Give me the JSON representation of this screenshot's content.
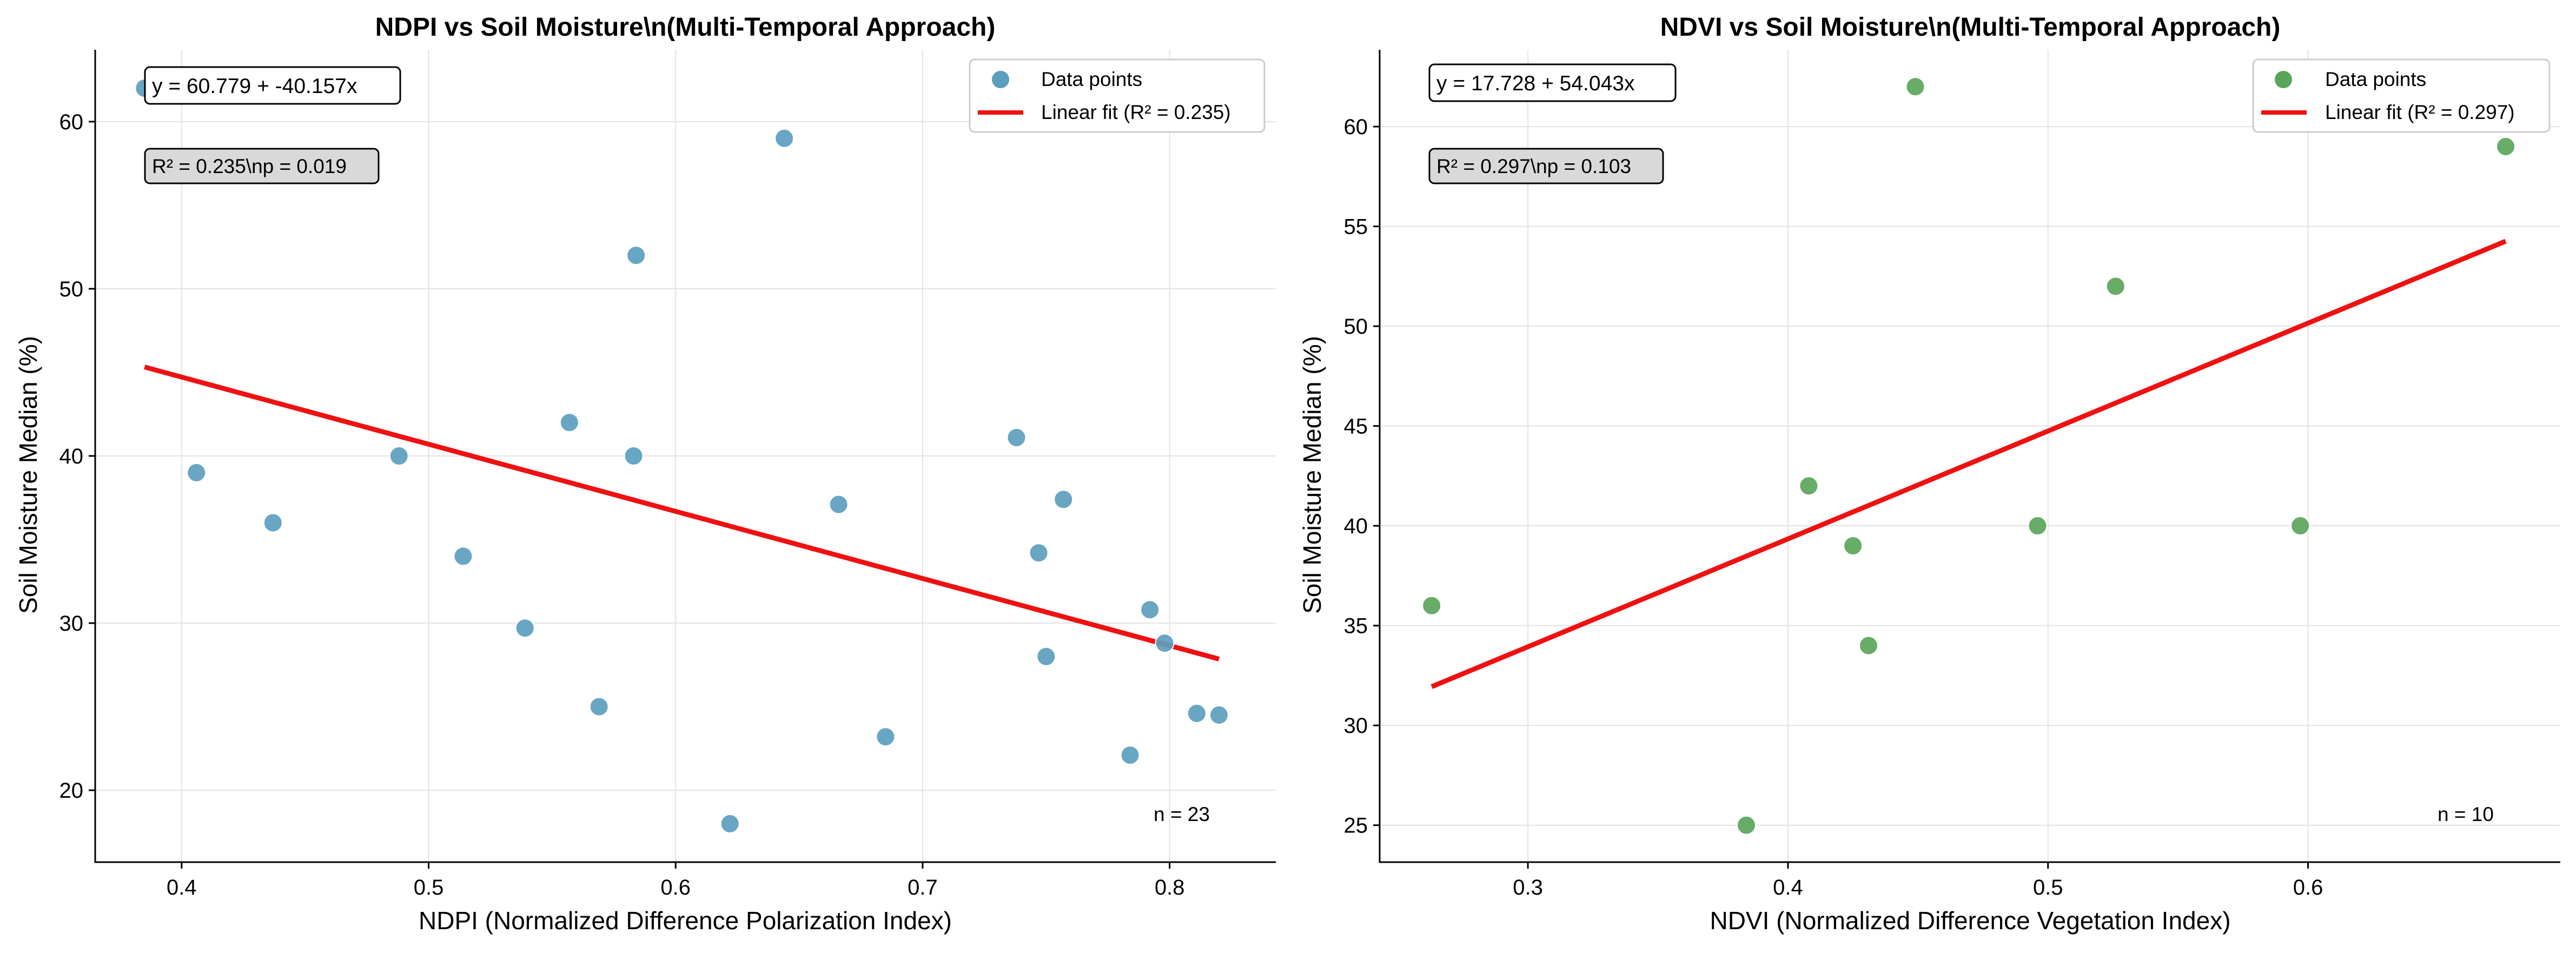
{
  "chart_data": [
    {
      "type": "scatter",
      "title": "NDPI vs Soil Moisture\\n(Multi-Temporal Approach)",
      "xlabel": "NDPI (Normalized Difference Polarization Index)",
      "ylabel": "Soil Moisture Median (%)",
      "xlim": [
        0.365,
        0.843
      ],
      "ylim": [
        15.7,
        64.3
      ],
      "xticks": [
        0.4,
        0.5,
        0.6,
        0.7,
        0.8
      ],
      "xtick_labels": [
        "0.4",
        "0.5",
        "0.6",
        "0.7",
        "0.8"
      ],
      "yticks": [
        20,
        30,
        40,
        50,
        60
      ],
      "ytick_labels": [
        "20",
        "30",
        "40",
        "50",
        "60"
      ],
      "grid": true,
      "legend_position": "top-right",
      "series": [
        {
          "name": "Data points",
          "kind": "scatter",
          "color": "#5b9ebf",
          "x": [
            0.385,
            0.406,
            0.437,
            0.488,
            0.514,
            0.539,
            0.557,
            0.569,
            0.583,
            0.584,
            0.622,
            0.644,
            0.666,
            0.685,
            0.738,
            0.747,
            0.75,
            0.757,
            0.784,
            0.792,
            0.798,
            0.811,
            0.82
          ],
          "y": [
            62,
            39,
            36,
            40,
            34,
            29.7,
            42,
            25,
            40,
            52,
            18,
            59,
            37.1,
            23.2,
            41.1,
            34.2,
            28,
            37.4,
            22.1,
            30.8,
            28.8,
            24.6,
            24.5
          ]
        },
        {
          "name": "Linear fit (R² = 0.235)",
          "kind": "line",
          "color": "#ee1111",
          "x": [
            0.385,
            0.82
          ],
          "y": [
            45.32,
            27.85
          ]
        }
      ],
      "annotations": {
        "equation": "y = 60.779 + -40.157x",
        "stats": "R² = 0.235\\np = 0.019",
        "count": "n = 23"
      }
    },
    {
      "type": "scatter",
      "title": "NDVI vs Soil Moisture\\n(Multi-Temporal Approach)",
      "xlabel": "NDVI (Normalized Difference Vegetation Index)",
      "ylabel": "Soil Moisture Median (%)",
      "xlim": [
        0.243,
        0.697
      ],
      "ylim": [
        23.15,
        63.85
      ],
      "xticks": [
        0.3,
        0.4,
        0.5,
        0.6
      ],
      "xtick_labels": [
        "0.3",
        "0.4",
        "0.5",
        "0.6"
      ],
      "yticks": [
        25,
        30,
        35,
        40,
        45,
        50,
        55,
        60
      ],
      "ytick_labels": [
        "25",
        "30",
        "35",
        "40",
        "45",
        "50",
        "55",
        "60"
      ],
      "grid": true,
      "legend_position": "top-right",
      "series": [
        {
          "name": "Data points",
          "kind": "scatter",
          "color": "#5aa55a",
          "x": [
            0.263,
            0.384,
            0.408,
            0.425,
            0.431,
            0.449,
            0.496,
            0.526,
            0.597,
            0.676
          ],
          "y": [
            36,
            25,
            42,
            39,
            34,
            62,
            40,
            52,
            40,
            59
          ]
        },
        {
          "name": "Linear fit (R² = 0.297)",
          "kind": "line",
          "color": "#ee1111",
          "x": [
            0.263,
            0.676
          ],
          "y": [
            31.94,
            54.26
          ]
        }
      ],
      "annotations": {
        "equation": "y = 17.728 + 54.043x",
        "stats": "R² = 0.297\\np = 0.103",
        "count": "n = 10"
      }
    }
  ]
}
